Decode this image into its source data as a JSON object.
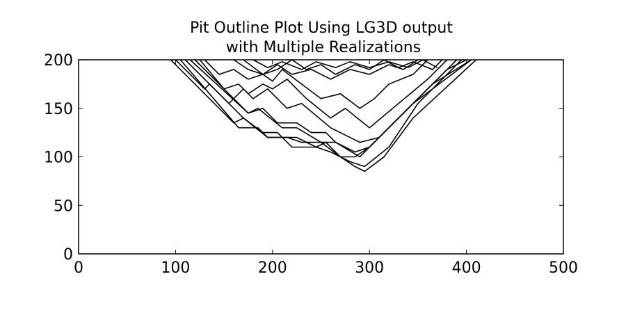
{
  "chart_data": {
    "type": "line",
    "title_line1": "Pit Outline Plot Using LG3D output",
    "title_line2": "with Multiple Realizations",
    "title": "Pit Outline Plot Using LG3D output with Multiple Realizations",
    "xlabel": "",
    "ylabel": "",
    "xlim": [
      0,
      500
    ],
    "ylim": [
      0,
      200
    ],
    "xticks": [
      0,
      100,
      200,
      300,
      400,
      500
    ],
    "yticks": [
      0,
      50,
      100,
      150,
      200
    ],
    "grid": false,
    "legend": "none",
    "line_color": "#000000",
    "series": [
      {
        "x": [
          100,
          130,
          135,
          155,
          160,
          175,
          190,
          205,
          225,
          240,
          255,
          265,
          290,
          310,
          340,
          380,
          400
        ],
        "y": [
          200,
          170,
          175,
          155,
          160,
          145,
          150,
          135,
          135,
          125,
          125,
          115,
          100,
          120,
          150,
          190,
          200
        ]
      },
      {
        "x": [
          95,
          160,
          170,
          195,
          215,
          230,
          250,
          270,
          285,
          300,
          330,
          345,
          405
        ],
        "y": [
          200,
          135,
          140,
          120,
          120,
          115,
          115,
          100,
          100,
          110,
          140,
          155,
          200
        ]
      },
      {
        "x": [
          105,
          165,
          185,
          195,
          225,
          245,
          255,
          270,
          285,
          295,
          315,
          345,
          410
        ],
        "y": [
          200,
          130,
          130,
          120,
          120,
          110,
          115,
          100,
          90,
          85,
          100,
          140,
          200
        ]
      },
      {
        "x": [
          110,
          170,
          190,
          205,
          220,
          245,
          260,
          280,
          295,
          320,
          350,
          395
        ],
        "y": [
          200,
          140,
          125,
          125,
          110,
          110,
          105,
          95,
          90,
          110,
          155,
          200
        ]
      },
      {
        "x": [
          115,
          175,
          185,
          210,
          225,
          250,
          265,
          285,
          300,
          330,
          365,
          405
        ],
        "y": [
          200,
          145,
          150,
          130,
          130,
          115,
          115,
          105,
          110,
          140,
          175,
          200
        ]
      },
      {
        "x": [
          120,
          160,
          170,
          180,
          195,
          215,
          230,
          260,
          290,
          310,
          325,
          350,
          390
        ],
        "y": [
          200,
          160,
          170,
          160,
          170,
          150,
          155,
          130,
          115,
          120,
          135,
          160,
          200
        ]
      },
      {
        "x": [
          125,
          150,
          165,
          175,
          190,
          200,
          215,
          235,
          260,
          275,
          300,
          330,
          360,
          380
        ],
        "y": [
          200,
          170,
          175,
          165,
          175,
          170,
          180,
          160,
          140,
          150,
          130,
          155,
          180,
          200
        ]
      },
      {
        "x": [
          130,
          145,
          160,
          175,
          190,
          200,
          210,
          230,
          250,
          270,
          290,
          305,
          320,
          345,
          360
        ],
        "y": [
          200,
          185,
          190,
          180,
          185,
          178,
          190,
          175,
          160,
          165,
          150,
          160,
          175,
          185,
          200
        ]
      },
      {
        "x": [
          160,
          175,
          190,
          205,
          220,
          240,
          260,
          280,
          300,
          320,
          335,
          350
        ],
        "y": [
          200,
          190,
          185,
          195,
          185,
          190,
          180,
          190,
          185,
          195,
          190,
          200
        ]
      },
      {
        "x": [
          170,
          190,
          205,
          220,
          235,
          250,
          265,
          285,
          300,
          315,
          330,
          345,
          365,
          375
        ],
        "y": [
          200,
          185,
          190,
          200,
          190,
          195,
          185,
          195,
          190,
          200,
          192,
          198,
          190,
          200
        ]
      },
      {
        "x": [
          180,
          195,
          210,
          230,
          245,
          265,
          280,
          300,
          320,
          340,
          355,
          370
        ],
        "y": [
          200,
          192,
          198,
          190,
          198,
          192,
          198,
          192,
          198,
          192,
          200,
          192
        ]
      }
    ]
  }
}
